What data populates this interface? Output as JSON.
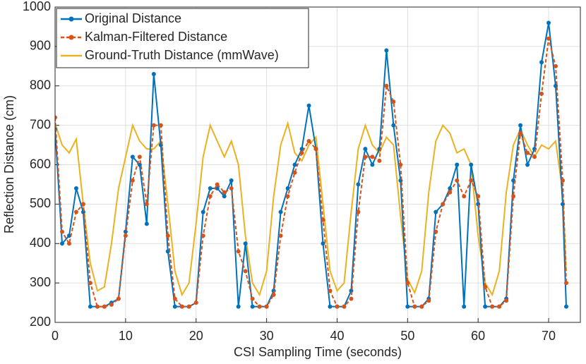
{
  "chart_data": {
    "type": "line",
    "xlabel": "CSI Sampling Time (seconds)",
    "ylabel": "Reflection Distance (cm)",
    "x": [
      0,
      1,
      2,
      3,
      4,
      5,
      6,
      7,
      8,
      9,
      10,
      11,
      12,
      13,
      14,
      15,
      16,
      17,
      18,
      19,
      20,
      21,
      22,
      23,
      24,
      25,
      26,
      27,
      28,
      29,
      30,
      31,
      32,
      33,
      34,
      35,
      36,
      37,
      38,
      39,
      40,
      41,
      42,
      43,
      44,
      45,
      46,
      47,
      48,
      49,
      50,
      51,
      52,
      53,
      54,
      55,
      56,
      57,
      58,
      59,
      60,
      61,
      62,
      63,
      64,
      65,
      66,
      67,
      68,
      69,
      70,
      71,
      72,
      72.5
    ],
    "series": [
      {
        "name": "Original Distance",
        "color": "#0072BD",
        "marker": "o",
        "linestyle": "solid",
        "values": [
          690,
          400,
          420,
          540,
          480,
          240,
          240,
          240,
          250,
          260,
          430,
          620,
          600,
          450,
          830,
          650,
          380,
          240,
          240,
          240,
          250,
          480,
          540,
          540,
          520,
          560,
          240,
          400,
          240,
          240,
          240,
          280,
          480,
          540,
          600,
          640,
          750,
          640,
          400,
          240,
          240,
          240,
          280,
          550,
          640,
          600,
          640,
          890,
          700,
          560,
          240,
          240,
          240,
          260,
          480,
          500,
          540,
          600,
          240,
          600,
          500,
          240,
          240,
          240,
          260,
          560,
          700,
          600,
          640,
          860,
          960,
          800,
          500,
          240
        ]
      },
      {
        "name": "Kalman-Filtered Distance",
        "color": "#D95319",
        "marker": "o",
        "linestyle": "dashed",
        "values": [
          720,
          430,
          400,
          480,
          500,
          300,
          240,
          240,
          245,
          260,
          420,
          560,
          620,
          500,
          700,
          700,
          420,
          260,
          240,
          240,
          250,
          420,
          520,
          550,
          530,
          540,
          380,
          330,
          260,
          240,
          240,
          270,
          420,
          520,
          580,
          630,
          660,
          640,
          460,
          280,
          240,
          240,
          260,
          480,
          620,
          620,
          610,
          800,
          760,
          600,
          300,
          240,
          240,
          255,
          430,
          500,
          530,
          560,
          520,
          560,
          520,
          290,
          240,
          240,
          255,
          520,
          680,
          630,
          620,
          780,
          920,
          850,
          560,
          300
        ]
      },
      {
        "name": "Ground-Truth Distance (mmWave)",
        "color": "#EDB120",
        "marker": "none",
        "linestyle": "solid",
        "values": [
          705,
          650,
          630,
          665,
          500,
          350,
          280,
          290,
          400,
          540,
          620,
          700,
          660,
          640,
          640,
          660,
          500,
          330,
          270,
          300,
          450,
          620,
          700,
          660,
          620,
          660,
          600,
          420,
          300,
          270,
          330,
          520,
          650,
          705,
          630,
          610,
          650,
          670,
          500,
          330,
          280,
          300,
          480,
          640,
          700,
          650,
          630,
          670,
          650,
          470,
          310,
          275,
          330,
          530,
          660,
          700,
          680,
          630,
          640,
          600,
          420,
          300,
          270,
          330,
          530,
          650,
          690,
          650,
          620,
          650,
          640,
          660,
          530,
          330
        ]
      }
    ],
    "xlim": [
      0,
      74.5
    ],
    "xticks": [
      0,
      10,
      20,
      30,
      40,
      50,
      60,
      70
    ],
    "ylim": [
      200,
      1000
    ],
    "yticks": [
      200,
      300,
      400,
      500,
      600,
      700,
      800,
      900,
      1000
    ],
    "grid": true,
    "legend": "upper-left"
  }
}
